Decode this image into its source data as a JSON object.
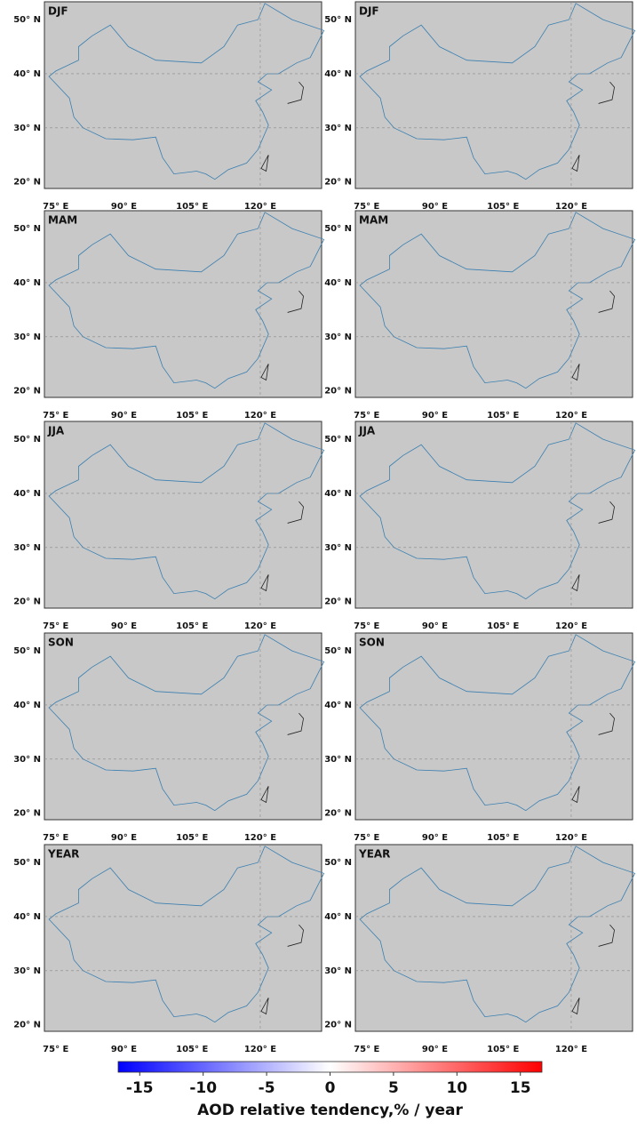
{
  "panels": [
    {
      "label": "DJF"
    },
    {
      "label": "DJF"
    },
    {
      "label": "MAM"
    },
    {
      "label": "MAM"
    },
    {
      "label": "JJA"
    },
    {
      "label": "JJA"
    },
    {
      "label": "SON"
    },
    {
      "label": "SON"
    },
    {
      "label": "YEAR"
    },
    {
      "label": "YEAR"
    }
  ],
  "lon_lim": [
    72.5,
    133.5
  ],
  "lat_lim": [
    18.8,
    53.3
  ],
  "lon_ticks": [
    {
      "value": 75,
      "label": "75° E"
    },
    {
      "value": 90,
      "label": "90° E"
    },
    {
      "value": 105,
      "label": "105° E"
    },
    {
      "value": 120,
      "label": "120° E"
    }
  ],
  "lat_ticks": [
    {
      "value": 50,
      "label": "50° N"
    },
    {
      "value": 40,
      "label": "40° N"
    },
    {
      "value": 30,
      "label": "30° N"
    },
    {
      "value": 20,
      "label": "20° N"
    }
  ],
  "colorbar": {
    "lim": [
      -16.7,
      16.7
    ],
    "ticks": [
      -15,
      -10,
      -5,
      0,
      5,
      10,
      15
    ],
    "label": "AOD relative tendency,% / year",
    "colors": [
      "#0000ff",
      "#ffffff",
      "#ff0000"
    ]
  }
}
